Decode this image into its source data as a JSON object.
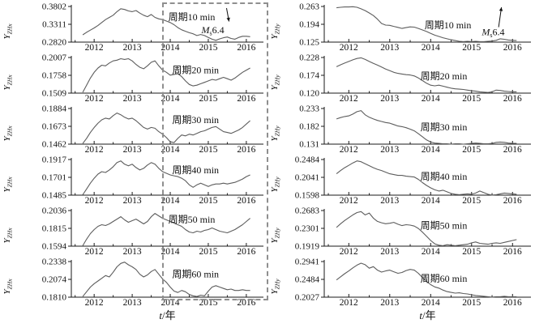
{
  "figure": {
    "xlabel_var": "t",
    "xlabel_rest": "/年",
    "xtick_labels": [
      "2012",
      "2013",
      "2014",
      "2015",
      "2016"
    ],
    "xticks": [
      2012,
      2013,
      2014,
      2015,
      2016
    ],
    "minor_xticks": [
      2011.5,
      2012.5,
      2013.5,
      2014.5,
      2015.5
    ],
    "xlim": [
      2011.4,
      2016.45
    ],
    "colors": {
      "curve": "#5d5d5d",
      "axis": "#1a1a1a",
      "text": "#111111",
      "highlight_box": "#8f8f8f"
    },
    "highlight_box": {
      "column": "left",
      "x_start_year": 2013.78,
      "note": "dashed rectangle over 2014-2016 of all left-column panels"
    }
  },
  "chart_data": [
    {
      "id": "left-10min",
      "type": "line",
      "column": "left",
      "row": 1,
      "ylabel_base": "Y",
      "ylabel_sub": "ZHx",
      "period_label": "周期10 min",
      "ytick_labels": [
        "0.2820",
        "0.3311",
        "0.3802"
      ],
      "ylim": [
        0.282,
        0.3802
      ],
      "x0": 2011.7,
      "dx": 0.1,
      "label_x": 2013.95,
      "label_frac": 0.3,
      "annotation": {
        "main": "M",
        "sub": "s",
        "value": "6.4",
        "x": 2014.82,
        "frac": 0.66,
        "arrow": "down",
        "arrow_x": 2015.48
      },
      "y": [
        0.302,
        0.309,
        0.315,
        0.321,
        0.328,
        0.336,
        0.344,
        0.35,
        0.356,
        0.366,
        0.374,
        0.372,
        0.368,
        0.366,
        0.369,
        0.362,
        0.356,
        0.352,
        0.358,
        0.35,
        0.346,
        0.344,
        0.34,
        0.336,
        0.33,
        0.322,
        0.316,
        0.312,
        0.308,
        0.305,
        0.3,
        0.303,
        0.3,
        0.295,
        0.29,
        0.287,
        0.291,
        0.294,
        0.296,
        0.292,
        0.29,
        0.295,
        0.298,
        0.298,
        0.297
      ]
    },
    {
      "id": "left-20min",
      "type": "line",
      "column": "left",
      "row": 2,
      "ylabel_base": "Y",
      "ylabel_sub": "ZHx",
      "period_label": "周期20 min",
      "ytick_labels": [
        "0.1509",
        "0.1758",
        "0.2007"
      ],
      "ylim": [
        0.1509,
        0.2007
      ],
      "x0": 2011.7,
      "dx": 0.1,
      "label_x": 2014.05,
      "label_frac": 0.35,
      "y": [
        0.152,
        0.162,
        0.172,
        0.18,
        0.186,
        0.19,
        0.189,
        0.193,
        0.196,
        0.197,
        0.199,
        0.198,
        0.199,
        0.196,
        0.191,
        0.187,
        0.185,
        0.189,
        0.194,
        0.196,
        0.189,
        0.183,
        0.18,
        0.176,
        0.177,
        0.178,
        0.174,
        0.168,
        0.163,
        0.161,
        0.162,
        0.164,
        0.166,
        0.168,
        0.17,
        0.169,
        0.171,
        0.173,
        0.171,
        0.169,
        0.172,
        0.176,
        0.18,
        0.183,
        0.186
      ]
    },
    {
      "id": "left-30min",
      "type": "line",
      "column": "left",
      "row": 3,
      "ylabel_base": "Y",
      "ylabel_sub": "ZHx",
      "period_label": "周期30 min",
      "ytick_labels": [
        "0.1462",
        "0.1673",
        "0.1884"
      ],
      "ylim": [
        0.1462,
        0.1884
      ],
      "x0": 2011.7,
      "dx": 0.1,
      "label_x": 2014.05,
      "label_frac": 0.32,
      "y": [
        0.147,
        0.153,
        0.16,
        0.166,
        0.171,
        0.175,
        0.177,
        0.176,
        0.18,
        0.183,
        0.181,
        0.178,
        0.176,
        0.177,
        0.174,
        0.17,
        0.166,
        0.164,
        0.166,
        0.165,
        0.161,
        0.158,
        0.154,
        0.149,
        0.148,
        0.153,
        0.157,
        0.156,
        0.158,
        0.157,
        0.159,
        0.161,
        0.162,
        0.164,
        0.166,
        0.167,
        0.164,
        0.161,
        0.16,
        0.159,
        0.161,
        0.163,
        0.166,
        0.17,
        0.174
      ]
    },
    {
      "id": "left-40min",
      "type": "line",
      "column": "left",
      "row": 4,
      "ylabel_base": "Y",
      "ylabel_sub": "ZHx",
      "period_label": "周期40 min",
      "ytick_labels": [
        "0.1485",
        "0.1701",
        "0.1917"
      ],
      "ylim": [
        0.1485,
        0.1917
      ],
      "x0": 2011.7,
      "dx": 0.1,
      "label_x": 2014.05,
      "label_frac": 0.3,
      "y": [
        0.149,
        0.156,
        0.163,
        0.169,
        0.174,
        0.177,
        0.176,
        0.179,
        0.183,
        0.188,
        0.19,
        0.186,
        0.184,
        0.186,
        0.182,
        0.179,
        0.181,
        0.185,
        0.188,
        0.186,
        0.181,
        0.177,
        0.175,
        0.173,
        0.172,
        0.171,
        0.169,
        0.166,
        0.161,
        0.158,
        0.161,
        0.163,
        0.161,
        0.159,
        0.161,
        0.162,
        0.162,
        0.163,
        0.162,
        0.163,
        0.164,
        0.166,
        0.168,
        0.171,
        0.173
      ]
    },
    {
      "id": "left-50min",
      "type": "line",
      "column": "left",
      "row": 5,
      "ylabel_base": "Y",
      "ylabel_sub": "ZHx",
      "period_label": "周期50 min",
      "ytick_labels": [
        "0.1594",
        "0.1815",
        "0.2036"
      ],
      "ylim": [
        0.1594,
        0.2036
      ],
      "x0": 2011.7,
      "dx": 0.1,
      "label_x": 2013.95,
      "label_frac": 0.25,
      "y": [
        0.16,
        0.168,
        0.175,
        0.18,
        0.184,
        0.186,
        0.185,
        0.187,
        0.19,
        0.193,
        0.196,
        0.192,
        0.189,
        0.191,
        0.193,
        0.19,
        0.187,
        0.19,
        0.196,
        0.2,
        0.197,
        0.194,
        0.192,
        0.19,
        0.188,
        0.186,
        0.184,
        0.18,
        0.177,
        0.176,
        0.178,
        0.177,
        0.179,
        0.18,
        0.182,
        0.18,
        0.178,
        0.177,
        0.176,
        0.178,
        0.18,
        0.183,
        0.186,
        0.19,
        0.194
      ]
    },
    {
      "id": "left-60min",
      "type": "line",
      "column": "left",
      "row": 6,
      "ylabel_base": "Y",
      "ylabel_sub": "ZHx",
      "period_label": "周期60 min",
      "ytick_labels": [
        "0.1810",
        "0.2074",
        "0.2338"
      ],
      "ylim": [
        0.181,
        0.2338
      ],
      "x0": 2011.7,
      "dx": 0.1,
      "label_x": 2014.05,
      "label_frac": 0.35,
      "y": [
        0.182,
        0.189,
        0.196,
        0.201,
        0.205,
        0.209,
        0.213,
        0.211,
        0.218,
        0.226,
        0.231,
        0.233,
        0.229,
        0.226,
        0.222,
        0.215,
        0.211,
        0.214,
        0.219,
        0.222,
        0.215,
        0.208,
        0.203,
        0.196,
        0.19,
        0.188,
        0.191,
        0.189,
        0.185,
        0.183,
        0.182,
        0.184,
        0.183,
        0.19,
        0.196,
        0.198,
        0.196,
        0.194,
        0.192,
        0.193,
        0.191,
        0.191,
        0.192,
        0.191,
        0.191
      ]
    },
    {
      "id": "right-10min",
      "type": "line",
      "column": "right",
      "row": 1,
      "ylabel_base": "Y",
      "ylabel_sub": "ZHy",
      "period_label": "周期10 min",
      "ytick_labels": [
        "0.125",
        "0.194",
        "0.263"
      ],
      "ylim": [
        0.125,
        0.263
      ],
      "x0": 2011.7,
      "dx": 0.1,
      "label_x": 2013.85,
      "label_frac": 0.52,
      "annotation": {
        "main": "M",
        "sub": "s",
        "value": "6.4",
        "x": 2015.25,
        "frac": 0.72,
        "arrow": "up",
        "arrow_x": 2015.66
      },
      "y": [
        0.258,
        0.26,
        0.261,
        0.261,
        0.262,
        0.26,
        0.254,
        0.247,
        0.238,
        0.228,
        0.214,
        0.197,
        0.191,
        0.19,
        0.186,
        0.182,
        0.178,
        0.181,
        0.184,
        0.183,
        0.178,
        0.172,
        0.166,
        0.159,
        0.152,
        0.147,
        0.142,
        0.138,
        0.134,
        0.131,
        0.128,
        0.127,
        0.128,
        0.127,
        0.128,
        0.127,
        0.127,
        0.128,
        0.129,
        0.132,
        0.138,
        0.136,
        0.133,
        0.132,
        0.131
      ]
    },
    {
      "id": "right-20min",
      "type": "line",
      "column": "right",
      "row": 2,
      "ylabel_base": "Y",
      "ylabel_sub": "ZHy",
      "period_label": "周期20 min",
      "ytick_labels": [
        "0.120",
        "0.174",
        "0.228"
      ],
      "ylim": [
        0.12,
        0.228
      ],
      "x0": 2011.7,
      "dx": 0.1,
      "label_x": 2013.75,
      "label_frac": 0.52,
      "y": [
        0.2,
        0.206,
        0.211,
        0.216,
        0.221,
        0.225,
        0.227,
        0.222,
        0.216,
        0.21,
        0.205,
        0.199,
        0.193,
        0.188,
        0.183,
        0.18,
        0.178,
        0.176,
        0.175,
        0.172,
        0.166,
        0.158,
        0.15,
        0.144,
        0.142,
        0.144,
        0.141,
        0.138,
        0.135,
        0.133,
        0.132,
        0.131,
        0.129,
        0.127,
        0.126,
        0.124,
        0.123,
        0.122,
        0.124,
        0.129,
        0.128,
        0.126,
        0.125,
        0.124,
        0.124
      ]
    },
    {
      "id": "right-30min",
      "type": "line",
      "column": "right",
      "row": 3,
      "ylabel_base": "Y",
      "ylabel_sub": "ZHy",
      "period_label": "周期30 min",
      "ytick_labels": [
        "0.131",
        "0.182",
        "0.233"
      ],
      "ylim": [
        0.131,
        0.233
      ],
      "x0": 2011.7,
      "dx": 0.1,
      "label_x": 2013.75,
      "label_frac": 0.52,
      "y": [
        0.203,
        0.207,
        0.21,
        0.212,
        0.217,
        0.224,
        0.227,
        0.215,
        0.208,
        0.203,
        0.199,
        0.196,
        0.193,
        0.191,
        0.187,
        0.183,
        0.181,
        0.178,
        0.174,
        0.169,
        0.161,
        0.152,
        0.143,
        0.137,
        0.134,
        0.133,
        0.132,
        0.132,
        0.131,
        0.132,
        0.132,
        0.131,
        0.132,
        0.133,
        0.134,
        0.133,
        0.132,
        0.132,
        0.133,
        0.136,
        0.137,
        0.136,
        0.134,
        0.133,
        0.133
      ]
    },
    {
      "id": "right-40min",
      "type": "line",
      "column": "right",
      "row": 4,
      "ylabel_base": "Y",
      "ylabel_sub": "ZHy",
      "period_label": "周期40 min",
      "ytick_labels": [
        "0.1598",
        "0.2041",
        "0.2484"
      ],
      "ylim": [
        0.1598,
        0.2484
      ],
      "x0": 2011.7,
      "dx": 0.1,
      "label_x": 2013.75,
      "label_frac": 0.48,
      "y": [
        0.213,
        0.221,
        0.228,
        0.234,
        0.24,
        0.245,
        0.243,
        0.238,
        0.233,
        0.228,
        0.224,
        0.221,
        0.217,
        0.213,
        0.211,
        0.209,
        0.209,
        0.207,
        0.206,
        0.205,
        0.199,
        0.191,
        0.184,
        0.178,
        0.173,
        0.17,
        0.172,
        0.168,
        0.164,
        0.162,
        0.161,
        0.162,
        0.163,
        0.162,
        0.165,
        0.17,
        0.166,
        0.162,
        0.16,
        0.161,
        0.163,
        0.165,
        0.164,
        0.163,
        0.162
      ]
    },
    {
      "id": "right-50min",
      "type": "line",
      "column": "right",
      "row": 5,
      "ylabel_base": "Y",
      "ylabel_sub": "ZHy",
      "period_label": "周期50 min",
      "ytick_labels": [
        "0.1919",
        "0.2301",
        "0.2683"
      ],
      "ylim": [
        0.1919,
        0.2683
      ],
      "x0": 2011.7,
      "dx": 0.1,
      "label_x": 2013.75,
      "label_frac": 0.42,
      "y": [
        0.232,
        0.24,
        0.247,
        0.253,
        0.259,
        0.264,
        0.266,
        0.259,
        0.263,
        0.252,
        0.245,
        0.242,
        0.24,
        0.241,
        0.243,
        0.239,
        0.236,
        0.238,
        0.237,
        0.235,
        0.23,
        0.222,
        0.213,
        0.204,
        0.197,
        0.194,
        0.193,
        0.195,
        0.194,
        0.193,
        0.194,
        0.195,
        0.196,
        0.199,
        0.201,
        0.198,
        0.197,
        0.196,
        0.198,
        0.199,
        0.198,
        0.2,
        0.202,
        0.204,
        0.206
      ]
    },
    {
      "id": "right-60min",
      "type": "line",
      "column": "right",
      "row": 6,
      "ylabel_base": "Y",
      "ylabel_sub": "ZHy",
      "period_label": "周期60 min",
      "ytick_labels": [
        "0.2027",
        "0.2484",
        "0.2941"
      ],
      "ylim": [
        0.2027,
        0.2941
      ],
      "x0": 2011.7,
      "dx": 0.1,
      "label_x": 2013.75,
      "label_frac": 0.48,
      "y": [
        0.247,
        0.255,
        0.263,
        0.27,
        0.278,
        0.285,
        0.29,
        0.286,
        0.277,
        0.281,
        0.272,
        0.267,
        0.27,
        0.272,
        0.268,
        0.264,
        0.266,
        0.271,
        0.274,
        0.272,
        0.264,
        0.253,
        0.243,
        0.235,
        0.229,
        0.226,
        0.221,
        0.217,
        0.215,
        0.213,
        0.214,
        0.212,
        0.211,
        0.209,
        0.207,
        0.206,
        0.205,
        0.204,
        0.203,
        0.204,
        0.204,
        0.205,
        0.204,
        0.204,
        0.204
      ]
    }
  ]
}
